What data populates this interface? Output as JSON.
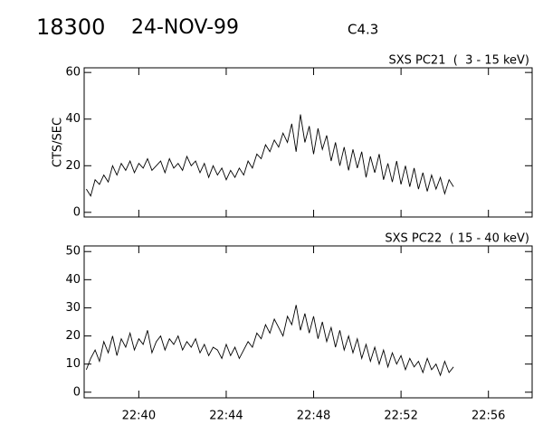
{
  "header": {
    "id": "18300",
    "date": "24-NOV-99",
    "class": "C4.3"
  },
  "chart_data": [
    {
      "type": "line",
      "title": "SXS PC21  (  3 - 15 keV)",
      "ylabel": "CTS/SEC",
      "color": "#000000",
      "x": [
        37.6,
        37.8,
        38,
        38.2,
        38.4,
        38.6,
        38.8,
        39,
        39.2,
        39.4,
        39.6,
        39.8,
        40,
        40.2,
        40.4,
        40.6,
        40.8,
        41,
        41.2,
        41.4,
        41.6,
        41.8,
        42,
        42.2,
        42.4,
        42.6,
        42.8,
        43,
        43.2,
        43.4,
        43.6,
        43.8,
        44,
        44.2,
        44.4,
        44.6,
        44.8,
        45,
        45.2,
        45.4,
        45.6,
        45.8,
        46,
        46.2,
        46.4,
        46.6,
        46.8,
        47,
        47.2,
        47.4,
        47.6,
        47.8,
        48,
        48.2,
        48.4,
        48.6,
        48.8,
        49,
        49.2,
        49.4,
        49.6,
        49.8,
        50,
        50.2,
        50.4,
        50.6,
        50.8,
        51,
        51.2,
        51.4,
        51.6,
        51.8,
        52,
        52.2,
        52.4,
        52.6,
        52.8,
        53,
        53.2,
        53.4,
        53.6,
        53.8,
        54,
        54.2,
        54.4
      ],
      "values": [
        10,
        7,
        14,
        12,
        16,
        13,
        20,
        16,
        21,
        18,
        22,
        17,
        21,
        19,
        23,
        18,
        20,
        22,
        17,
        23,
        19,
        21,
        18,
        24,
        20,
        22,
        17,
        21,
        15,
        20,
        16,
        19,
        14,
        18,
        15,
        19,
        16,
        22,
        19,
        25,
        23,
        29,
        26,
        31,
        28,
        34,
        30,
        38,
        26,
        42,
        30,
        37,
        25,
        36,
        27,
        33,
        22,
        30,
        20,
        28,
        18,
        27,
        19,
        26,
        15,
        24,
        17,
        25,
        14,
        21,
        13,
        22,
        12,
        20,
        11,
        19,
        10,
        17,
        9,
        16,
        10,
        15,
        8,
        14,
        11
      ],
      "xlim": [
        37.5,
        58
      ],
      "xticks": [
        40,
        44,
        48,
        52,
        56
      ],
      "ylim": [
        -2,
        62
      ],
      "yticks": [
        0,
        20,
        40,
        60
      ]
    },
    {
      "type": "line",
      "title": "SXS PC22  ( 15 - 40 keV)",
      "color": "#000000",
      "x": [
        37.6,
        37.8,
        38,
        38.2,
        38.4,
        38.6,
        38.8,
        39,
        39.2,
        39.4,
        39.6,
        39.8,
        40,
        40.2,
        40.4,
        40.6,
        40.8,
        41,
        41.2,
        41.4,
        41.6,
        41.8,
        42,
        42.2,
        42.4,
        42.6,
        42.8,
        43,
        43.2,
        43.4,
        43.6,
        43.8,
        44,
        44.2,
        44.4,
        44.6,
        44.8,
        45,
        45.2,
        45.4,
        45.6,
        45.8,
        46,
        46.2,
        46.4,
        46.6,
        46.8,
        47,
        47.2,
        47.4,
        47.6,
        47.8,
        48,
        48.2,
        48.4,
        48.6,
        48.8,
        49,
        49.2,
        49.4,
        49.6,
        49.8,
        50,
        50.2,
        50.4,
        50.6,
        50.8,
        51,
        51.2,
        51.4,
        51.6,
        51.8,
        52,
        52.2,
        52.4,
        52.6,
        52.8,
        53,
        53.2,
        53.4,
        53.6,
        53.8,
        54,
        54.2,
        54.4
      ],
      "values": [
        8,
        12,
        15,
        11,
        18,
        14,
        20,
        13,
        19,
        16,
        21,
        15,
        19,
        17,
        22,
        14,
        18,
        20,
        15,
        19,
        17,
        20,
        15,
        18,
        16,
        19,
        14,
        17,
        13,
        16,
        15,
        12,
        17,
        13,
        16,
        12,
        15,
        18,
        16,
        21,
        19,
        24,
        21,
        26,
        23,
        20,
        27,
        24,
        31,
        22,
        28,
        21,
        27,
        19,
        25,
        18,
        23,
        16,
        22,
        15,
        20,
        14,
        19,
        12,
        17,
        11,
        16,
        10,
        15,
        9,
        14,
        10,
        13,
        8,
        12,
        9,
        11,
        7,
        12,
        8,
        10,
        6,
        11,
        7,
        9
      ],
      "xlim": [
        37.5,
        58
      ],
      "xticks": [
        {
          "value": 40,
          "label": "22:40"
        },
        {
          "value": 44,
          "label": "22:44"
        },
        {
          "value": 48,
          "label": "22:48"
        },
        {
          "value": 52,
          "label": "22:52"
        },
        {
          "value": 56,
          "label": "22:56"
        }
      ],
      "ylim": [
        -2,
        52
      ],
      "yticks": [
        0,
        10,
        20,
        30,
        40,
        50
      ]
    }
  ]
}
